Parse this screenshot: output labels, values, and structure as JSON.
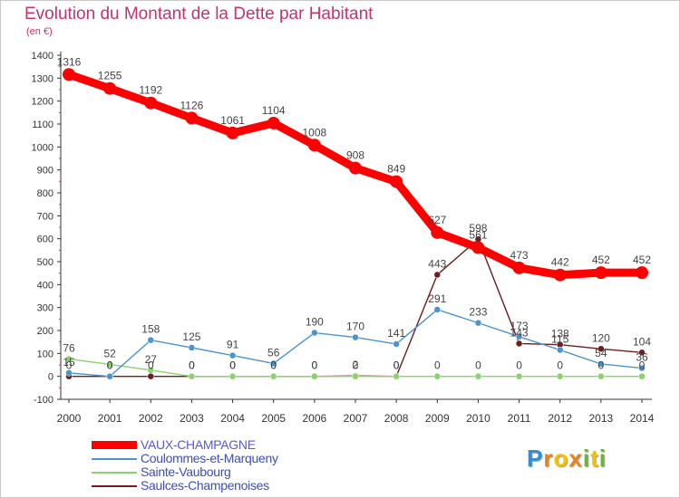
{
  "chart_data": {
    "type": "line",
    "title": "Evolution du Montant de la Dette par Habitant",
    "unit": "(en €)",
    "xlabel": "",
    "ylabel": "",
    "x": [
      "2000",
      "2001",
      "2002",
      "2003",
      "2004",
      "2005",
      "2006",
      "2007",
      "2008",
      "2009",
      "2010",
      "2011",
      "2012",
      "2013",
      "2014"
    ],
    "ylim": [
      -100,
      1400
    ],
    "yticks": [
      -100,
      0,
      100,
      200,
      300,
      400,
      500,
      600,
      700,
      800,
      900,
      1000,
      1100,
      1200,
      1300,
      1400
    ],
    "grid": false,
    "legend": "bottom-left",
    "series": [
      {
        "name": "VAUX-CHAMPAGNE",
        "color": "#ff0000",
        "values": [
          1316,
          1255,
          1192,
          1126,
          1061,
          1104,
          1008,
          908,
          849,
          627,
          561,
          473,
          442,
          452,
          452
        ],
        "labels": [
          "1316",
          "1255",
          "1192",
          "1126",
          "1061",
          "1104",
          "1008",
          "908",
          "849",
          "627",
          "561",
          "473",
          "442",
          "452",
          "452"
        ]
      },
      {
        "name": "Coulommes-et-Marqueny",
        "color": "#4c94cf",
        "values": [
          15,
          0,
          158,
          125,
          91,
          56,
          190,
          170,
          141,
          291,
          233,
          173,
          115,
          54,
          36
        ],
        "labels": [
          "15",
          "0",
          "158",
          "125",
          "91",
          "56",
          "190",
          "170",
          "141",
          "291",
          "233",
          "173",
          "115",
          "54",
          "36"
        ]
      },
      {
        "name": "Sainte-Vaubourg",
        "color": "#88d36a",
        "values": [
          76,
          52,
          27,
          0,
          0,
          0,
          0,
          0,
          0,
          0,
          0,
          0,
          0,
          0,
          0
        ],
        "labels": [
          "76",
          "52",
          "27",
          "0",
          "0",
          "0",
          "0",
          "0",
          "0",
          "0",
          "0",
          "0",
          "0",
          "0",
          "0"
        ]
      },
      {
        "name": "Saulces-Champenoises",
        "color": "#6f1d1d",
        "values": [
          0,
          0,
          0,
          0,
          0,
          0,
          0,
          2,
          0,
          443,
          598,
          143,
          138,
          120,
          104
        ],
        "labels": [
          "0",
          "0",
          "0",
          "0",
          "0",
          "0",
          "0",
          "2",
          "0",
          "443",
          "598",
          "143",
          "138",
          "120",
          "104"
        ]
      }
    ]
  },
  "brand": {
    "letters": [
      "P",
      "r",
      "o",
      "x",
      "i",
      "t",
      "i"
    ],
    "colors": [
      "#2f8fd6",
      "#e8831e",
      "#f2c200",
      "#e8831e",
      "#66b82e",
      "#f2c200",
      "#66b82e"
    ]
  }
}
